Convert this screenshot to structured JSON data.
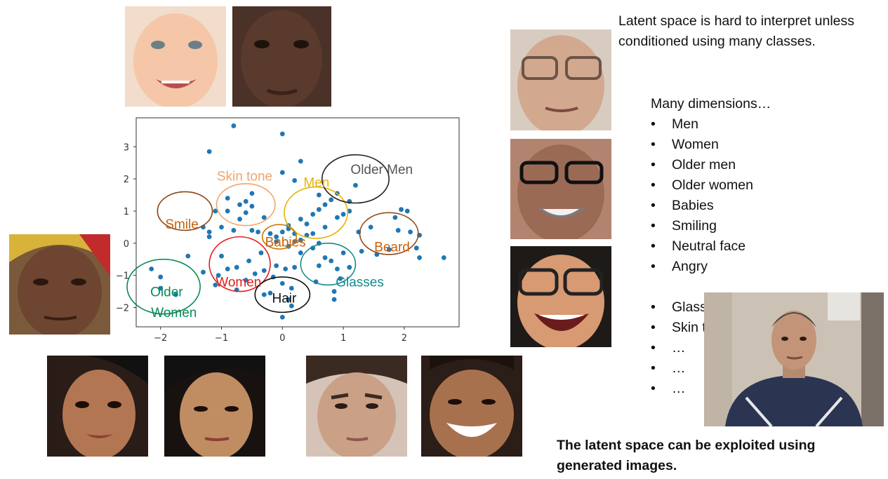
{
  "headline": "Latent space is hard to interpret unless conditioned using many classes.",
  "dimensions": {
    "title": "Many dimensions…",
    "items": [
      "Men",
      "Women",
      "Older men",
      "Older women",
      "Babies",
      "Smiling",
      "Neutral face",
      "Angry"
    ],
    "items2": [
      "Glasses",
      "Skin tone",
      "…",
      "…",
      "…"
    ]
  },
  "footer": "The latent space can be exploited using generated images.",
  "chart_data": {
    "type": "scatter",
    "xlim": [
      -2.4,
      2.9
    ],
    "ylim": [
      -2.6,
      3.9
    ],
    "x_ticks": [
      -2,
      -1,
      0,
      1,
      2
    ],
    "y_ticks": [
      -2,
      -1,
      0,
      1,
      2,
      3
    ],
    "point_color": "#1f77b4",
    "points": [
      [
        -0.8,
        3.65
      ],
      [
        0.0,
        3.4
      ],
      [
        -1.2,
        2.85
      ],
      [
        0.3,
        2.55
      ],
      [
        0.0,
        2.2
      ],
      [
        0.2,
        1.95
      ],
      [
        -0.5,
        1.55
      ],
      [
        -0.9,
        1.4
      ],
      [
        -0.6,
        1.3
      ],
      [
        -0.7,
        1.2
      ],
      [
        -0.5,
        1.15
      ],
      [
        -0.9,
        1.0
      ],
      [
        -0.6,
        0.95
      ],
      [
        -0.3,
        0.8
      ],
      [
        -0.7,
        0.75
      ],
      [
        -1.1,
        1.0
      ],
      [
        -1.3,
        0.5
      ],
      [
        -1.2,
        0.35
      ],
      [
        -1.2,
        0.2
      ],
      [
        -1.0,
        0.5
      ],
      [
        -0.8,
        0.4
      ],
      [
        -0.5,
        0.4
      ],
      [
        -0.4,
        0.35
      ],
      [
        -0.2,
        0.3
      ],
      [
        -0.1,
        0.2
      ],
      [
        0.0,
        0.35
      ],
      [
        0.1,
        0.45
      ],
      [
        0.2,
        0.3
      ],
      [
        0.1,
        0.55
      ],
      [
        0.3,
        0.75
      ],
      [
        0.4,
        0.6
      ],
      [
        0.5,
        0.9
      ],
      [
        0.6,
        1.05
      ],
      [
        0.7,
        1.2
      ],
      [
        0.8,
        1.35
      ],
      [
        0.9,
        0.8
      ],
      [
        1.0,
        0.9
      ],
      [
        1.1,
        1.0
      ],
      [
        0.7,
        0.5
      ],
      [
        0.5,
        0.3
      ],
      [
        0.3,
        0.1
      ],
      [
        0.1,
        -0.1
      ],
      [
        -0.1,
        0.05
      ],
      [
        0.6,
        1.5
      ],
      [
        0.9,
        1.55
      ],
      [
        1.2,
        1.8
      ],
      [
        1.1,
        1.3
      ],
      [
        1.25,
        0.35
      ],
      [
        1.45,
        0.5
      ],
      [
        0.2,
        0.05
      ],
      [
        0.4,
        0.25
      ],
      [
        0.6,
        0.0
      ],
      [
        0.3,
        -0.3
      ],
      [
        0.5,
        -0.15
      ],
      [
        0.7,
        -0.45
      ],
      [
        0.8,
        -0.55
      ],
      [
        0.9,
        -0.8
      ],
      [
        0.85,
        -1.75
      ],
      [
        0.85,
        -1.5
      ],
      [
        1.1,
        -0.75
      ],
      [
        1.0,
        -0.3
      ],
      [
        1.3,
        -0.25
      ],
      [
        1.55,
        -0.35
      ],
      [
        1.75,
        -0.2
      ],
      [
        1.85,
        0.8
      ],
      [
        1.95,
        1.05
      ],
      [
        2.05,
        1.0
      ],
      [
        1.9,
        0.4
      ],
      [
        2.1,
        0.35
      ],
      [
        2.25,
        0.25
      ],
      [
        2.2,
        -0.15
      ],
      [
        2.25,
        -0.45
      ],
      [
        2.65,
        -0.45
      ],
      [
        -0.1,
        -0.7
      ],
      [
        0.05,
        -0.8
      ],
      [
        0.2,
        -0.75
      ],
      [
        -0.3,
        -0.85
      ],
      [
        -0.15,
        -1.05
      ],
      [
        0.0,
        -1.25
      ],
      [
        0.15,
        -1.4
      ],
      [
        -0.2,
        -1.55
      ],
      [
        0.1,
        -1.75
      ],
      [
        0.0,
        -2.3
      ],
      [
        0.15,
        -1.95
      ],
      [
        -0.3,
        -1.6
      ],
      [
        -0.55,
        -0.55
      ],
      [
        -0.75,
        -0.75
      ],
      [
        -0.9,
        -0.8
      ],
      [
        -1.0,
        -0.4
      ],
      [
        -1.05,
        -1.0
      ],
      [
        -0.6,
        -1.15
      ],
      [
        -1.1,
        -1.3
      ],
      [
        -0.75,
        -1.45
      ],
      [
        -0.45,
        -0.95
      ],
      [
        -1.55,
        -0.4
      ],
      [
        -2.0,
        -1.05
      ],
      [
        -2.15,
        -0.8
      ],
      [
        -2.0,
        -1.4
      ],
      [
        -1.75,
        -1.6
      ],
      [
        -0.35,
        -0.3
      ],
      [
        0.6,
        -0.7
      ],
      [
        0.95,
        -1.1
      ],
      [
        -1.3,
        -0.9
      ],
      [
        0.55,
        -1.2
      ]
    ],
    "clusters": [
      {
        "label": "Skin tone",
        "cx": -0.6,
        "cy": 1.2,
        "rx": 0.48,
        "ry": 0.65,
        "color": "#f0a46b"
      },
      {
        "label": "Men",
        "cx": 0.55,
        "cy": 0.95,
        "rx": 0.52,
        "ry": 0.8,
        "color": "#e8b300"
      },
      {
        "label": "Older Men",
        "cx": 1.2,
        "cy": 2.0,
        "rx": 0.55,
        "ry": 0.75,
        "color": "#222222"
      },
      {
        "label": "Smile",
        "cx": -1.6,
        "cy": 1.0,
        "rx": 0.45,
        "ry": 0.6,
        "color": "#8b4513"
      },
      {
        "label": "Beard",
        "cx": 1.75,
        "cy": 0.3,
        "rx": 0.48,
        "ry": 0.65,
        "color": "#8b4513"
      },
      {
        "label": "Babies",
        "cx": -0.05,
        "cy": 0.2,
        "rx": 0.28,
        "ry": 0.38,
        "color": "#cc7a00"
      },
      {
        "label": "Women",
        "cx": -0.7,
        "cy": -0.65,
        "rx": 0.5,
        "ry": 0.85,
        "color": "#e0201e"
      },
      {
        "label": "Glasses",
        "cx": 0.75,
        "cy": -0.65,
        "rx": 0.45,
        "ry": 0.65,
        "color": "#138a8a"
      },
      {
        "label": "Hair",
        "cx": 0.0,
        "cy": -1.6,
        "rx": 0.45,
        "ry": 0.55,
        "color": "#111111"
      },
      {
        "label": "Older Women",
        "cx": -1.95,
        "cy": -1.35,
        "rx": 0.6,
        "ry": 0.85,
        "color": "#0a8a55"
      }
    ],
    "labels": [
      {
        "text": "Skin tone",
        "x": -0.62,
        "y": 1.95,
        "color": "#f0a46b"
      },
      {
        "text": "Men",
        "x": 0.56,
        "y": 1.75,
        "color": "#e8b300"
      },
      {
        "text": "Older Men",
        "x": 1.63,
        "y": 2.15,
        "color": "#555555"
      },
      {
        "text": "Smile",
        "x": -1.65,
        "y": 0.45,
        "color": "#c7620b"
      },
      {
        "text": "Beard",
        "x": 1.8,
        "y": -0.25,
        "color": "#c7620b"
      },
      {
        "text": "Babies",
        "x": 0.05,
        "y": -0.1,
        "color": "#c7620b"
      },
      {
        "text": "Women",
        "x": -0.72,
        "y": -1.35,
        "color": "#e0201e"
      },
      {
        "text": "Glasses",
        "x": 1.27,
        "y": -1.35,
        "color": "#138a8a"
      },
      {
        "text": "Hair",
        "x": 0.03,
        "y": -1.85,
        "color": "#111111"
      },
      {
        "text": "Older",
        "x": -1.9,
        "y": -1.65,
        "color": "#0a8a55"
      },
      {
        "text": "Women",
        "x": -1.78,
        "y": -2.3,
        "color": "#0a8a55"
      }
    ]
  }
}
